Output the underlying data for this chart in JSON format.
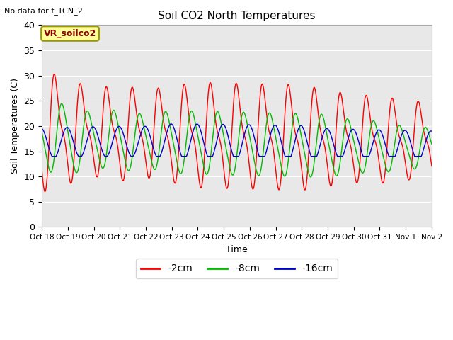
{
  "title": "Soil CO2 North Temperatures",
  "subtitle": "No data for f_TCN_2",
  "ylabel": "Soil Temperatures (C)",
  "xlabel": "Time",
  "annotation": "VR_soilco2",
  "ylim": [
    0,
    40
  ],
  "background_color": "#e8e8e8",
  "x_tick_labels": [
    "Oct 18",
    "Oct 19",
    "Oct 20",
    "Oct 21",
    "Oct 22",
    "Oct 23",
    "Oct 24",
    "Oct 25",
    "Oct 26",
    "Oct 27",
    "Oct 28",
    "Oct 29",
    "Oct 30",
    "Oct 31",
    "Nov 1",
    "Nov 2"
  ],
  "colors": {
    "red": "#ff0000",
    "green": "#00bb00",
    "blue": "#0000cc"
  },
  "legend_labels": [
    "-2cm",
    "-8cm",
    "-16cm"
  ],
  "figsize": [
    6.4,
    4.8
  ],
  "dpi": 100
}
